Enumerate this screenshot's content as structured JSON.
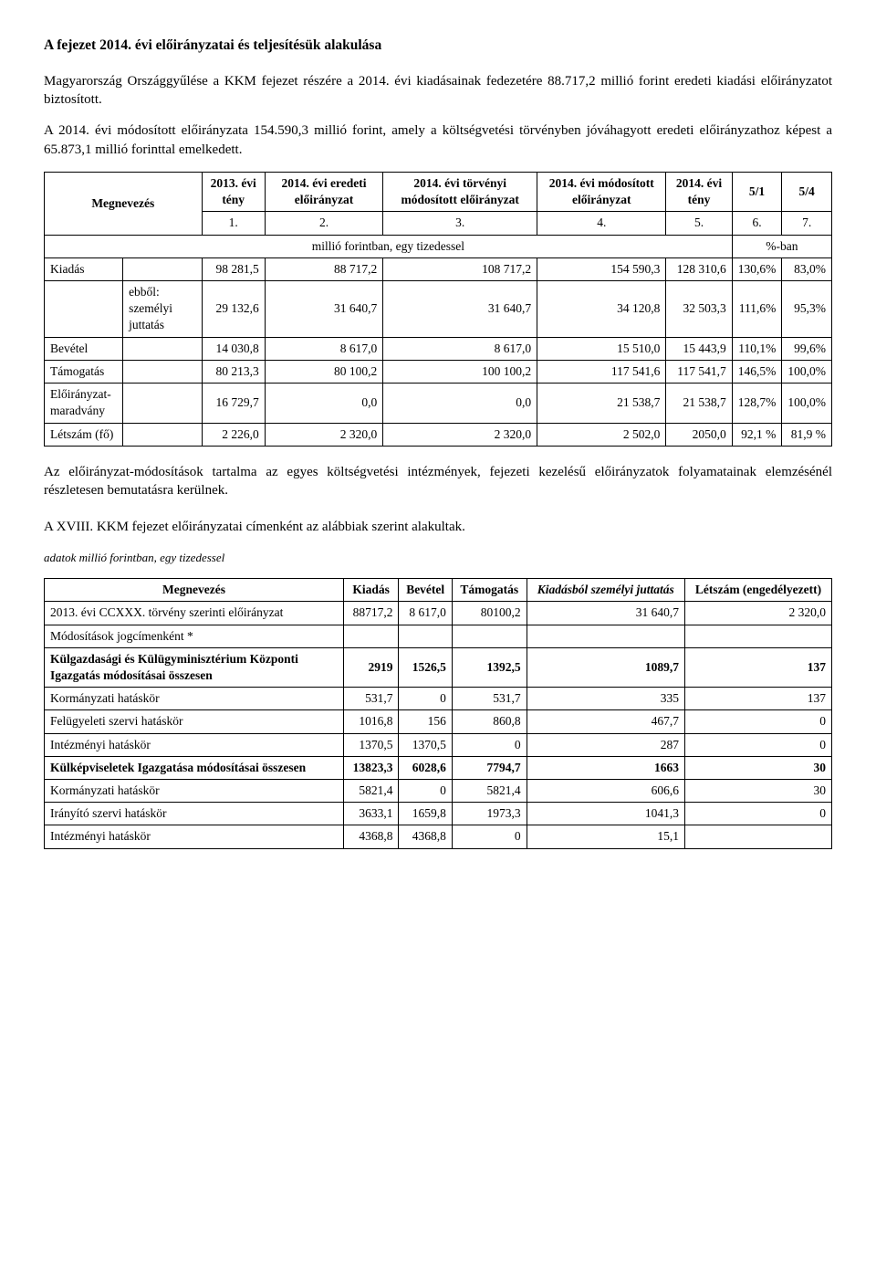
{
  "title": "A fejezet 2014. évi előirányzatai és teljesítésük alakulása",
  "para1": "Magyarország Országgyűlése a KKM fejezet részére a 2014. évi kiadásainak fedezetére 88.717,2 millió forint eredeti kiadási előirányzatot biztosított.",
  "para2": "A 2014. évi módosított előirányzata 154.590,3 millió forint, amely a költségvetési törvényben jóváhagyott eredeti előirányzathoz képest a 65.873,1 millió forinttal emelkedett.",
  "t1": {
    "h_meg": "Megnevezés",
    "h1": "2013. évi tény",
    "h2": "2014. évi eredeti előirányzat",
    "h3": "2014. évi törvényi módosított előirányzat",
    "h4": "2014. évi módosított előirányzat",
    "h5": "2014. évi tény",
    "h6": "5/1",
    "h7": "5/4",
    "idx1": "1.",
    "idx2": "2.",
    "idx3": "3.",
    "idx4": "4.",
    "idx5": "5.",
    "idx6": "6.",
    "idx7": "7.",
    "unit_left": "millió forintban, egy tizedessel",
    "unit_right": "%-ban",
    "rows": [
      {
        "label": "Kiadás",
        "sub": "",
        "c1": "98 281,5",
        "c2": "88 717,2",
        "c3": "108 717,2",
        "c4": "154 590,3",
        "c5": "128 310,6",
        "c6": "130,6%",
        "c7": "83,0%"
      },
      {
        "label": "",
        "sub": "ebből: személyi juttatás",
        "c1": "29 132,6",
        "c2": "31 640,7",
        "c3": "31 640,7",
        "c4": "34 120,8",
        "c5": "32 503,3",
        "c6": "111,6%",
        "c7": "95,3%"
      },
      {
        "label": "Bevétel",
        "sub": "",
        "c1": "14 030,8",
        "c2": "8 617,0",
        "c3": "8 617,0",
        "c4": "15 510,0",
        "c5": "15 443,9",
        "c6": "110,1%",
        "c7": "99,6%"
      },
      {
        "label": "Támogatás",
        "sub": "",
        "c1": "80 213,3",
        "c2": "80 100,2",
        "c3": "100 100,2",
        "c4": "117 541,6",
        "c5": "117 541,7",
        "c6": "146,5%",
        "c7": "100,0%"
      },
      {
        "label": "Előirányzat-maradvány",
        "sub": "",
        "c1": "16 729,7",
        "c2": "0,0",
        "c3": "0,0",
        "c4": "21 538,7",
        "c5": "21 538,7",
        "c6": "128,7%",
        "c7": "100,0%"
      },
      {
        "label": "Létszám (fő)",
        "sub": "",
        "c1": "2 226,0",
        "c2": "2 320,0",
        "c3": "2 320,0",
        "c4": "2 502,0",
        "c5": "2050,0",
        "c6": "92,1 %",
        "c7": "81,9 %"
      }
    ]
  },
  "para3": "Az előirányzat-módosítások tartalma az egyes költségvetési intézmények, fejezeti kezelésű előirányzatok folyamatainak elemzésénél részletesen bemutatásra kerülnek.",
  "para4": "A XVIII. KKM fejezet előirányzatai címenként az alábbiak szerint alakultak.",
  "t2caption": "adatok millió forintban, egy tizedessel",
  "t2": {
    "h_meg": "Megnevezés",
    "h_kiad": "Kiadás",
    "h_bev": "Bevétel",
    "h_tam": "Támogatás",
    "h_kszj": "Kiadásból személyi juttatás",
    "h_let": "Létszám (engedélyezett)",
    "rows": [
      {
        "label": "2013. évi CCXXX. törvény szerinti előirányzat",
        "c1": "88717,2",
        "c2": "8 617,0",
        "c3": "80100,2",
        "c4": "31 640,7",
        "c5": "2 320,0",
        "bold": false
      },
      {
        "label": "Módosítások jogcímenként *",
        "c1": "",
        "c2": "",
        "c3": "",
        "c4": "",
        "c5": "",
        "bold": false
      },
      {
        "label": "Külgazdasági és Külügyminisztérium Központi Igazgatás módosításai összesen",
        "c1": "2919",
        "c2": "1526,5",
        "c3": "1392,5",
        "c4": "1089,7",
        "c5": "137",
        "bold": true
      },
      {
        "label": "Kormányzati hatáskör",
        "c1": "531,7",
        "c2": "0",
        "c3": "531,7",
        "c4": "335",
        "c5": "137",
        "bold": false
      },
      {
        "label": "Felügyeleti szervi hatáskör",
        "c1": "1016,8",
        "c2": "156",
        "c3": "860,8",
        "c4": "467,7",
        "c5": "0",
        "bold": false
      },
      {
        "label": "Intézményi hatáskör",
        "c1": "1370,5",
        "c2": "1370,5",
        "c3": "0",
        "c4": "287",
        "c5": "0",
        "bold": false
      },
      {
        "label": "Külképviseletek Igazgatása módosításai összesen",
        "c1": "13823,3",
        "c2": "6028,6",
        "c3": "7794,7",
        "c4": "1663",
        "c5": "30",
        "bold": true
      },
      {
        "label": "Kormányzati hatáskör",
        "c1": "5821,4",
        "c2": "0",
        "c3": "5821,4",
        "c4": "606,6",
        "c5": "30",
        "bold": false
      },
      {
        "label": "Irányító szervi hatáskör",
        "c1": "3633,1",
        "c2": "1659,8",
        "c3": "1973,3",
        "c4": "1041,3",
        "c5": "0",
        "bold": false
      },
      {
        "label": "Intézményi hatáskör",
        "c1": "4368,8",
        "c2": "4368,8",
        "c3": "0",
        "c4": "15,1",
        "c5": "",
        "bold": false
      }
    ]
  }
}
